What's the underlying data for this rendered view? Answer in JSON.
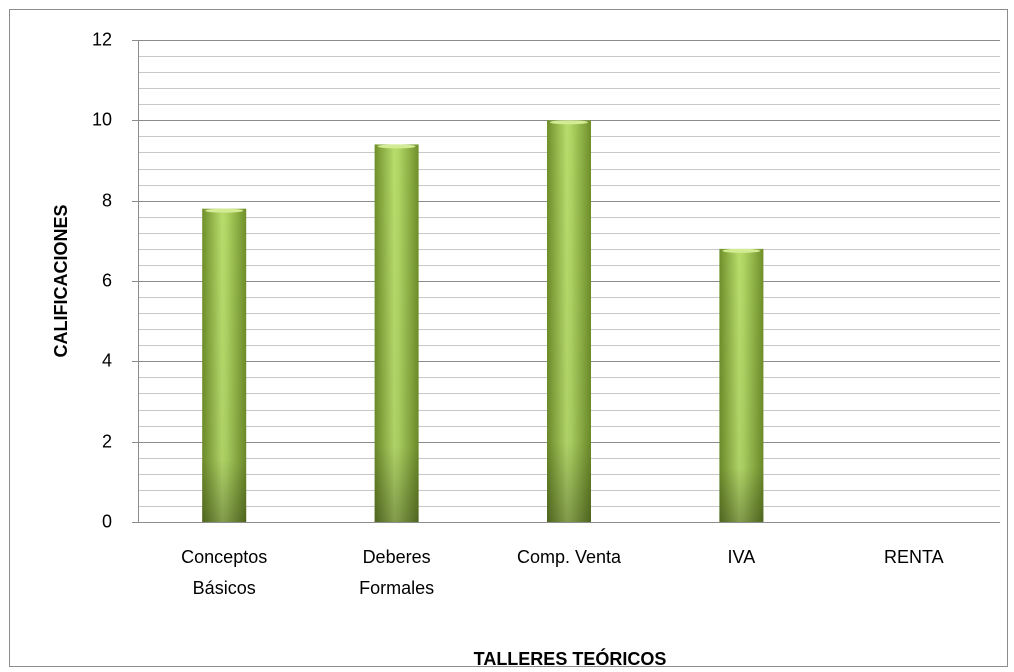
{
  "chart_data": {
    "type": "bar",
    "categories": [
      "Conceptos\nBásicos",
      "Deberes\nFormales",
      "Comp. Venta",
      "IVA",
      "RENTA"
    ],
    "values": [
      7.8,
      9.4,
      10,
      6.8,
      null
    ],
    "color": "#9bbb3f",
    "ylim": [
      0,
      12
    ],
    "yticks": [
      0,
      2,
      4,
      6,
      8,
      10,
      12
    ],
    "grid": true,
    "minor_grid_step": 0.4,
    "x_label": "TALLERES TEÓRICOS",
    "y_label": "CALIFICACIONES"
  }
}
